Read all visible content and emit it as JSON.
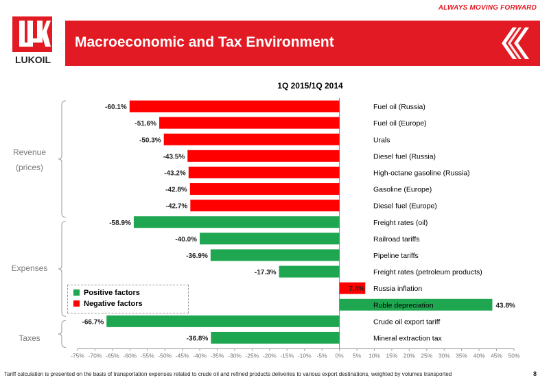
{
  "header": {
    "slogan": "ALWAYS MOVING FORWARD",
    "logo_text": "LUKOIL",
    "title": "Macroeconomic and Tax Environment"
  },
  "groups": [
    {
      "name": "revenue",
      "lines": [
        "Revenue",
        "(prices)"
      ]
    },
    {
      "name": "expenses",
      "lines": [
        "Expenses"
      ]
    },
    {
      "name": "taxes",
      "lines": [
        "Taxes"
      ]
    }
  ],
  "legend": {
    "positive": "Positive factors",
    "negative": "Negative factors"
  },
  "footnote": "Tariff calculation is presented on the basis of transportation expenses related to crude oil and refined products deliveries to various export destinations, weighted by volumes transported",
  "page_number": "8",
  "colors": {
    "positive": "#1ea650",
    "negative": "#ff0000",
    "brand": "#e21a23"
  },
  "chart_data": {
    "type": "bar",
    "orientation": "horizontal",
    "title": "1Q 2015/1Q 2014",
    "xlim": [
      -75,
      50
    ],
    "x_ticks": [
      -75,
      -70,
      -65,
      -60,
      -55,
      -50,
      -45,
      -40,
      -35,
      -30,
      -25,
      -20,
      -15,
      -10,
      -5,
      0,
      5,
      10,
      15,
      20,
      25,
      30,
      35,
      40,
      45,
      50
    ],
    "x_tick_labels": [
      "-75%",
      "-70%",
      "-65%",
      "-60%",
      "-55%",
      "-50%",
      "-45%",
      "-40%",
      "-35%",
      "-30%",
      "-25%",
      "-20%",
      "-15%",
      "-10%",
      "-5%",
      "0%",
      "5%",
      "10%",
      "15%",
      "20%",
      "25%",
      "30%",
      "35%",
      "40%",
      "45%",
      "50%"
    ],
    "bars": [
      {
        "category": "Fuel oil (Russia)",
        "value": -60.1,
        "label": "-60.1%",
        "factor": "negative"
      },
      {
        "category": "Fuel oil (Europe)",
        "value": -51.6,
        "label": "-51.6%",
        "factor": "negative"
      },
      {
        "category": "Urals",
        "value": -50.3,
        "label": "-50.3%",
        "factor": "negative"
      },
      {
        "category": "Diesel fuel (Russia)",
        "value": -43.5,
        "label": "-43.5%",
        "factor": "negative"
      },
      {
        "category": "High-octane gasoline (Russia)",
        "value": -43.2,
        "label": "-43.2%",
        "factor": "negative"
      },
      {
        "category": "Gasoline (Europe)",
        "value": -42.8,
        "label": "-42.8%",
        "factor": "negative"
      },
      {
        "category": "Diesel fuel (Europe)",
        "value": -42.7,
        "label": "-42.7%",
        "factor": "negative"
      },
      {
        "category": "Freight rates  (oil)",
        "value": -58.9,
        "label": "-58.9%",
        "factor": "positive"
      },
      {
        "category": "Railroad tariffs",
        "value": -40.0,
        "label": "-40.0%",
        "factor": "positive"
      },
      {
        "category": "Pipeline tariffs",
        "value": -36.9,
        "label": "-36.9%",
        "factor": "positive"
      },
      {
        "category": "Freight rates (petroleum products)",
        "value": -17.3,
        "label": "-17.3%",
        "factor": "positive"
      },
      {
        "category": "Russia inflation",
        "value": 7.4,
        "label": "7.4%",
        "factor": "negative"
      },
      {
        "category": "Ruble depreciation",
        "value": 43.8,
        "label": "43.8%",
        "factor": "positive"
      },
      {
        "category": "Crude oil export tariff",
        "value": -66.7,
        "label": "-66.7%",
        "factor": "positive"
      },
      {
        "category": "Mineral extraction tax",
        "value": -36.8,
        "label": "-36.8%",
        "factor": "positive"
      }
    ]
  }
}
